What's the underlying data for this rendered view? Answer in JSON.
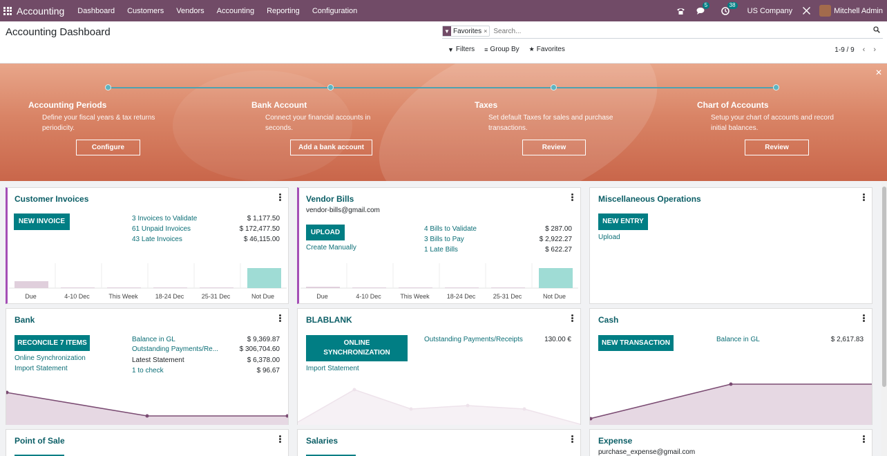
{
  "navbar": {
    "app_name": "Accounting",
    "menu": [
      "Dashboard",
      "Customers",
      "Vendors",
      "Accounting",
      "Reporting",
      "Configuration"
    ],
    "messages_count": "5",
    "activities_count": "38",
    "company": "US Company",
    "user": "Mitchell Admin",
    "brand_color": "#714b67"
  },
  "control_panel": {
    "title": "Accounting Dashboard",
    "facet_label": "Favorites",
    "search_placeholder": "Search...",
    "filters_label": "Filters",
    "group_by_label": "Group By",
    "favorites_label": "Favorites",
    "pager": "1-9 / 9"
  },
  "onboarding": {
    "steps": [
      {
        "title": "Accounting Periods",
        "desc": "Define your fiscal years & tax returns periodicity.",
        "button": "Configure"
      },
      {
        "title": "Bank Account",
        "desc": "Connect your financial accounts in seconds.",
        "button": "Add a bank account"
      },
      {
        "title": "Taxes",
        "desc": "Set default Taxes for sales and purchase transactions.",
        "button": "Review"
      },
      {
        "title": "Chart of Accounts",
        "desc": "Setup your chart of accounts and record initial balances.",
        "button": "Review"
      }
    ]
  },
  "cards": {
    "customer_invoices": {
      "title": "Customer Invoices",
      "button": "NEW INVOICE",
      "stats": [
        {
          "label": "3 Invoices to Validate",
          "value": "$ 1,177.50"
        },
        {
          "label": "61 Unpaid Invoices",
          "value": "$ 172,477.50"
        },
        {
          "label": "43 Late Invoices",
          "value": "$ 46,115.00"
        }
      ],
      "chart_labels": [
        "Due",
        "4-10 Dec",
        "This Week",
        "18-24 Dec",
        "25-31 Dec",
        "Not Due"
      ]
    },
    "vendor_bills": {
      "title": "Vendor Bills",
      "email": "vendor-bills@gmail.com",
      "button": "UPLOAD",
      "link": "Create Manually",
      "stats": [
        {
          "label": "4 Bills to Validate",
          "value": "$ 287.00"
        },
        {
          "label": "3 Bills to Pay",
          "value": "$ 2,922.27"
        },
        {
          "label": "1 Late Bills",
          "value": "$ 622.27"
        }
      ],
      "chart_labels": [
        "Due",
        "4-10 Dec",
        "This Week",
        "18-24 Dec",
        "25-31 Dec",
        "Not Due"
      ]
    },
    "misc": {
      "title": "Miscellaneous Operations",
      "button": "NEW ENTRY",
      "link": "Upload"
    },
    "bank": {
      "title": "Bank",
      "button": "RECONCILE 7 ITEMS",
      "links": [
        "Online Synchronization",
        "Import Statement"
      ],
      "stats": [
        {
          "label": "Balance in GL",
          "value": "$ 9,369.87"
        },
        {
          "label": "Outstanding Payments/Re...",
          "value": "$ 306,704.60"
        },
        {
          "label": "Latest Statement",
          "value": "$ 6,378.00"
        },
        {
          "label": "1 to check",
          "value": "$ 96.67"
        }
      ]
    },
    "blablank": {
      "title": "BLABLANK",
      "button_line1": "ONLINE",
      "button_line2": "SYNCHRONIZATION",
      "link": "Import Statement",
      "stat_label": "Outstanding Payments/Receipts",
      "stat_value": "130.00 €"
    },
    "cash": {
      "title": "Cash",
      "button": "NEW TRANSACTION",
      "stat_label": "Balance in GL",
      "stat_value": "$ 2,617.83"
    },
    "pos": {
      "title": "Point of Sale"
    },
    "salaries": {
      "title": "Salaries"
    },
    "expense": {
      "title": "Expense",
      "email": "purchase_expense@gmail.com"
    }
  }
}
